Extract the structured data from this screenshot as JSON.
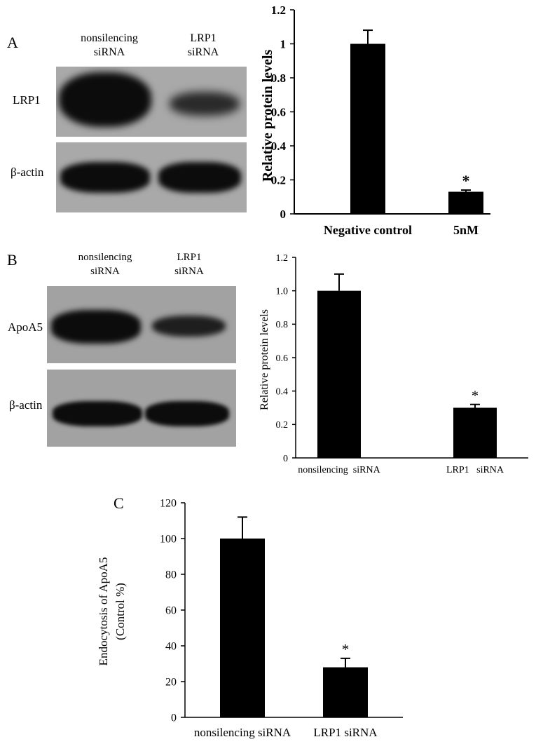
{
  "panels": {
    "a": {
      "letter": "A",
      "lane_labels": [
        {
          "line1": "nonsilencing",
          "line2": "siRNA"
        },
        {
          "line1": "LRP1",
          "line2": "siRNA"
        }
      ],
      "blot_labels": [
        "LRP1",
        "β-actin"
      ]
    },
    "b": {
      "letter": "B",
      "lane_labels": [
        {
          "line1": "nonsilencing",
          "line2": "siRNA"
        },
        {
          "line1": "LRP1",
          "line2": "siRNA"
        }
      ],
      "blot_labels": [
        "ApoA5",
        "β-actin"
      ]
    },
    "c": {
      "letter": "C"
    }
  },
  "chart_data": [
    {
      "type": "bar",
      "panel": "A",
      "categories": [
        "Negative control",
        "5nM"
      ],
      "values": [
        1.0,
        0.13
      ],
      "errors": [
        0.08,
        0.01
      ],
      "annotations": [
        "",
        "*"
      ],
      "ylabel": "Relative protein levels",
      "xlabel": "",
      "ylim": [
        0,
        1.2
      ],
      "yticks": [
        "0",
        "0.2",
        "0.4",
        "0.6",
        "0.8",
        "1",
        "1.2"
      ],
      "bold": true,
      "grid": false
    },
    {
      "type": "bar",
      "panel": "B",
      "categories": [
        "nonsilencing  siRNA",
        "LRP1   siRNA"
      ],
      "values": [
        1.0,
        0.3
      ],
      "errors": [
        0.1,
        0.02
      ],
      "annotations": [
        "",
        "*"
      ],
      "ylabel": "Relative protein levels",
      "xlabel": "",
      "ylim": [
        0,
        1.2
      ],
      "yticks": [
        "0",
        "0.2",
        "0.4",
        "0.6",
        "0.8",
        "1.0",
        "1.2"
      ],
      "bold": false,
      "grid": false
    },
    {
      "type": "bar",
      "panel": "C",
      "categories": [
        "nonsilencing siRNA",
        "LRP1 siRNA"
      ],
      "values": [
        100,
        28
      ],
      "errors": [
        12,
        5
      ],
      "annotations": [
        "",
        "*"
      ],
      "ylabel": "Endocytosis  of ApoA5",
      "ylabel2": "(Control %)",
      "xlabel": "",
      "ylim": [
        0,
        120
      ],
      "yticks": [
        "0",
        "20",
        "40",
        "60",
        "80",
        "100",
        "120"
      ],
      "bold": false,
      "grid": false
    }
  ]
}
